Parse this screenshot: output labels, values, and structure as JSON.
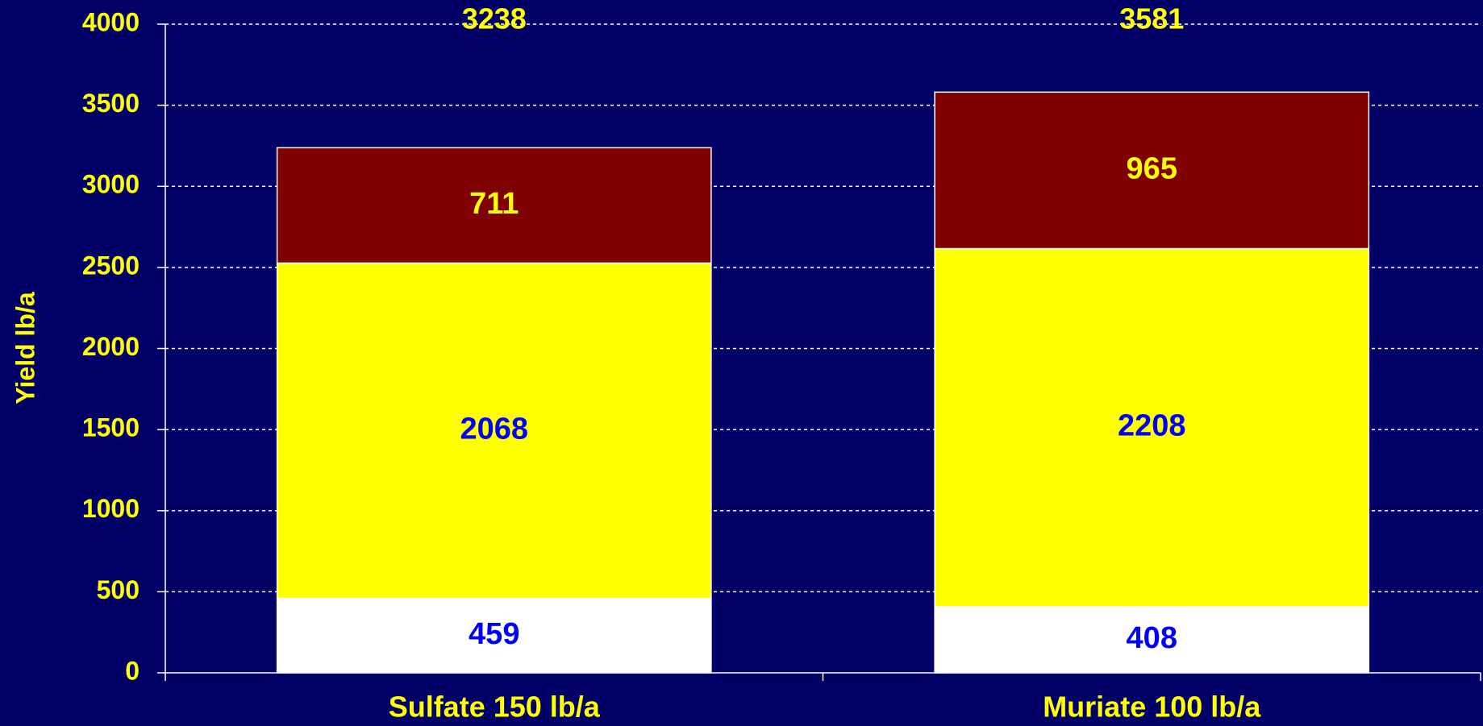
{
  "chart_data": {
    "type": "stacked_bar",
    "y_axis_label": "Yield lb/a",
    "categories": [
      "Sulfate 150 lb/a",
      "Muriate 100 lb/a"
    ],
    "series": [
      {
        "color": "#ffffff",
        "label_color": "#0000ff",
        "values": [
          459,
          408
        ]
      },
      {
        "color": "#ffff00",
        "label_color": "#0000ff",
        "values": [
          2068,
          2208
        ]
      },
      {
        "color": "#800000",
        "label_color": "#ffff00",
        "values": [
          711,
          965
        ]
      }
    ],
    "total_labels": [
      3238,
      3581
    ],
    "ylim": [
      0,
      4000
    ],
    "yticks": [
      0,
      500,
      1000,
      1500,
      2000,
      2500,
      3000,
      3500,
      4000
    ],
    "grid": true
  }
}
